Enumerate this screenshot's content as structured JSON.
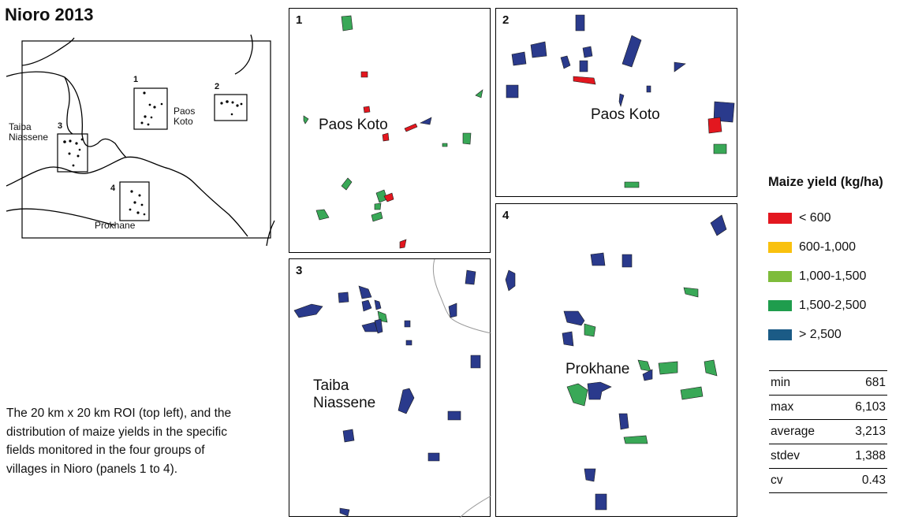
{
  "title": "Nioro 2013",
  "overview": {
    "boxes": [
      "1",
      "2",
      "3",
      "4"
    ],
    "labels": {
      "paos_koto": "Paos\nKoto",
      "taiba_niassene": "Taiba\nNiassene",
      "prokhane": "Prokhane"
    }
  },
  "panels": [
    {
      "number": "1",
      "place": "Paos Koto"
    },
    {
      "number": "2",
      "place": "Paos Koto"
    },
    {
      "number": "3",
      "place": "Taiba\nNiassene"
    },
    {
      "number": "4",
      "place": "Prokhane"
    }
  ],
  "caption": "The 20 km x 20 km ROI (top left), and the distribution of maize yields in the specific fields monitored in the four groups of villages in Nioro (panels 1 to 4).",
  "legend": {
    "title": "Maize yield (kg/ha)",
    "items": [
      {
        "label": "< 600",
        "color": "#e3171f"
      },
      {
        "label": "600-1,000",
        "color": "#f9c10e"
      },
      {
        "label": "1,000-1,500",
        "color": "#7ebc3b"
      },
      {
        "label": "1,500-2,500",
        "color": "#1f9d4d"
      },
      {
        "label": "> 2,500",
        "color": "#1b5b86"
      }
    ]
  },
  "stats": [
    {
      "name": "min",
      "value": "681"
    },
    {
      "name": "max",
      "value": "6,103"
    },
    {
      "name": "average",
      "value": "3,213"
    },
    {
      "name": "stdev",
      "value": "1,388"
    },
    {
      "name": "cv",
      "value": "0.43"
    }
  ],
  "field_colors": {
    "low": "#e3171f",
    "mid": "#39a857",
    "high": "#2a3a8c"
  }
}
